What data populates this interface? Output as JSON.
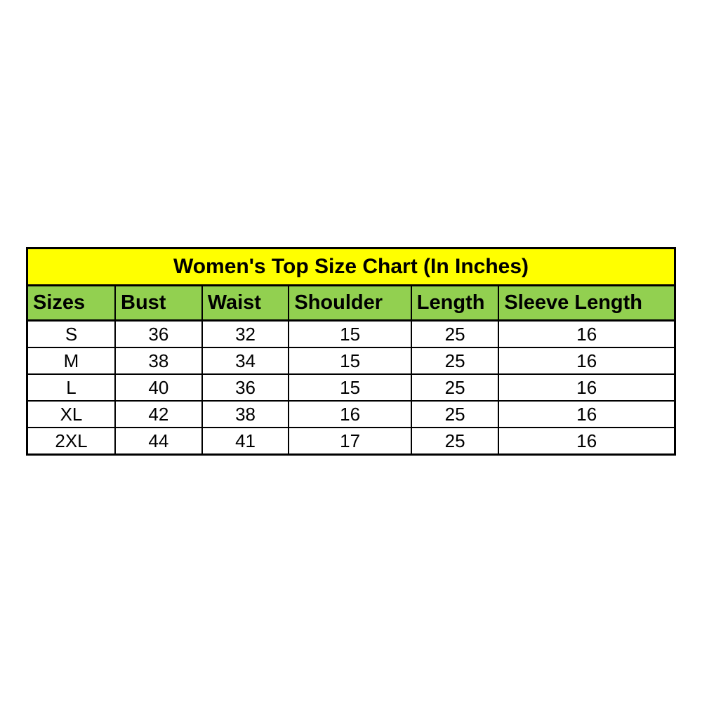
{
  "page": {
    "background_color": "#ffffff"
  },
  "chart_data": {
    "type": "table",
    "title": "Women's Top Size Chart (In Inches)",
    "columns": [
      "Sizes",
      "Bust",
      "Waist",
      "Shoulder",
      "Length",
      "Sleeve Length"
    ],
    "rows": [
      [
        "S",
        "36",
        "32",
        "15",
        "25",
        "16"
      ],
      [
        "M",
        "38",
        "34",
        "15",
        "25",
        "16"
      ],
      [
        "L",
        "40",
        "36",
        "15",
        "25",
        "16"
      ],
      [
        "XL",
        "42",
        "38",
        "16",
        "25",
        "16"
      ],
      [
        "2XL",
        "44",
        "41",
        "17",
        "25",
        "16"
      ]
    ],
    "layout": {
      "title_align": "center",
      "header_align": "left",
      "data_align": "center",
      "grid": true
    },
    "colors": {
      "title_background": "#ffff00",
      "header_background": "#92d050",
      "data_background": "#ffffff",
      "border": "#000000",
      "text": "#000000"
    }
  }
}
